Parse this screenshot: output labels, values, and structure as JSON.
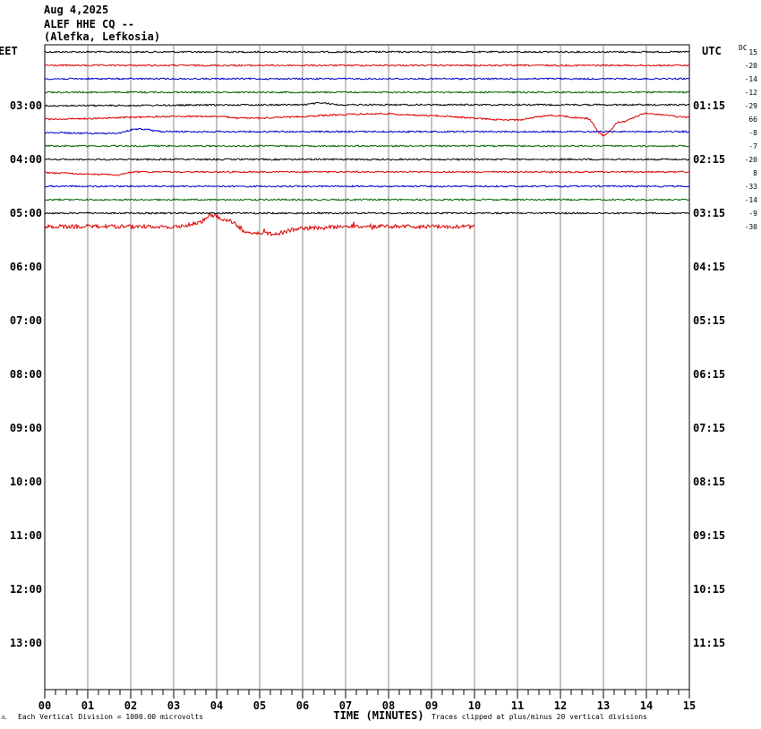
{
  "header": {
    "date": "Aug 4,2025",
    "station": "ALEF HHE CQ --",
    "location": "(Alefka, Lefkosia)"
  },
  "labels": {
    "left_zone": "EET",
    "right_zone": "UTC",
    "dc": "DC",
    "xlabel": "TIME (MINUTES)",
    "scale_note": "Each Vertical Division = 1000.00 microvolts",
    "clip_note": "Traces clipped at plus/minus 20 vertical divisions",
    "corner_mark": "JL"
  },
  "colors": {
    "black": "#000000",
    "red": "#dd0000",
    "blue": "#0000cc",
    "green": "#006600",
    "grid": "#888888"
  },
  "chart_data": {
    "type": "line",
    "title": "ALEF HHE CQ --",
    "xlabel": "TIME (MINUTES)",
    "xlim": [
      0,
      15
    ],
    "x_ticks": [
      "00",
      "01",
      "02",
      "03",
      "04",
      "05",
      "06",
      "07",
      "08",
      "09",
      "10",
      "11",
      "12",
      "13",
      "14",
      "15"
    ],
    "hour_labels_left": [
      "03:00",
      "04:00",
      "05:00",
      "06:00",
      "07:00",
      "08:00",
      "09:00",
      "10:00",
      "11:00",
      "12:00",
      "13:00"
    ],
    "hour_labels_right": [
      "01:15",
      "02:15",
      "03:15",
      "04:15",
      "05:15",
      "06:15",
      "07:15",
      "08:15",
      "09:15",
      "10:15",
      "11:15"
    ],
    "trace_color_cycle": [
      "black",
      "red",
      "blue",
      "green"
    ],
    "dc_offsets": [
      "15",
      "-20",
      "-14",
      "-12",
      "-29",
      "66",
      "-8",
      "-7",
      "-20",
      "8",
      "-33",
      "-14",
      "-9",
      "-30"
    ],
    "traces": [
      {
        "color": "black",
        "end_minute": 15,
        "features": []
      },
      {
        "color": "red",
        "end_minute": 15,
        "features": []
      },
      {
        "color": "blue",
        "end_minute": 15,
        "features": []
      },
      {
        "color": "green",
        "end_minute": 15,
        "features": []
      },
      {
        "color": "black",
        "end_minute": 15,
        "features": [
          [
            6.0,
            -1
          ],
          [
            6.4,
            -3
          ],
          [
            6.9,
            -1
          ]
        ]
      },
      {
        "color": "red",
        "end_minute": 15,
        "features": [
          [
            3.3,
            -3
          ],
          [
            4.0,
            -3
          ],
          [
            4.6,
            -1
          ],
          [
            7.9,
            -6
          ],
          [
            8.8,
            -4
          ],
          [
            10.9,
            1
          ],
          [
            11.8,
            -4
          ],
          [
            12.6,
            -1
          ],
          [
            13.0,
            18
          ],
          [
            13.4,
            3
          ],
          [
            14.0,
            -6
          ],
          [
            15,
            -2
          ]
        ]
      },
      {
        "color": "blue",
        "end_minute": 15,
        "features": [
          [
            1.2,
            1
          ],
          [
            1.6,
            1
          ],
          [
            2.2,
            -4
          ],
          [
            2.8,
            -1
          ]
        ]
      },
      {
        "color": "green",
        "end_minute": 15,
        "features": []
      },
      {
        "color": "black",
        "end_minute": 15,
        "features": []
      },
      {
        "color": "red",
        "end_minute": 15,
        "features": [
          [
            1.5,
            2
          ],
          [
            1.6,
            3
          ],
          [
            2.1,
            -1
          ]
        ]
      },
      {
        "color": "blue",
        "end_minute": 15,
        "features": []
      },
      {
        "color": "green",
        "end_minute": 15,
        "features": []
      },
      {
        "color": "black",
        "end_minute": 15,
        "features": []
      },
      {
        "color": "red",
        "end_minute": 10,
        "features": [
          [
            3.0,
            0
          ],
          [
            3.5,
            -3
          ],
          [
            3.9,
            -12
          ],
          [
            4.3,
            -6
          ],
          [
            4.7,
            6
          ],
          [
            5.3,
            8
          ],
          [
            6.0,
            2
          ],
          [
            7.0,
            0
          ],
          [
            10,
            0
          ]
        ]
      }
    ]
  }
}
